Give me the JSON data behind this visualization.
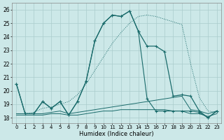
{
  "xlabel": "Humidex (Indice chaleur)",
  "bg_color": "#cce8e8",
  "grid_color": "#aacccc",
  "line_color": "#1a6b6b",
  "xlim": [
    -0.5,
    23.5
  ],
  "ylim": [
    17.6,
    26.5
  ],
  "yticks": [
    18,
    19,
    20,
    21,
    22,
    23,
    24,
    25,
    26
  ],
  "xticks": [
    0,
    1,
    2,
    3,
    4,
    5,
    6,
    7,
    8,
    9,
    10,
    11,
    12,
    13,
    14,
    15,
    16,
    17,
    18,
    19,
    20,
    21,
    22,
    23
  ],
  "dotted_x": [
    0,
    1,
    2,
    3,
    4,
    5,
    6,
    7,
    8,
    9,
    10,
    11,
    12,
    13,
    14,
    15,
    16,
    17,
    18,
    19,
    20,
    21,
    22,
    23
  ],
  "dotted_y": [
    18.3,
    18.3,
    18.4,
    18.7,
    18.8,
    19.0,
    19.2,
    19.7,
    20.5,
    21.5,
    22.5,
    23.5,
    24.3,
    25.0,
    25.5,
    25.6,
    25.5,
    25.3,
    25.1,
    24.9,
    22.0,
    19.5,
    18.5,
    18.4
  ],
  "jagged_x": [
    0,
    1,
    2,
    3,
    4,
    5,
    6,
    7,
    8,
    9,
    10,
    11,
    12,
    13,
    14,
    15,
    16,
    17,
    18,
    19,
    20,
    21,
    22,
    23
  ],
  "jagged_y": [
    20.5,
    18.3,
    18.3,
    19.2,
    18.7,
    19.2,
    18.2,
    19.2,
    20.7,
    23.7,
    25.0,
    25.6,
    25.5,
    25.9,
    24.4,
    19.4,
    18.5,
    18.5,
    18.5,
    18.5,
    18.5,
    18.4,
    18.0,
    18.5
  ],
  "main_x": [
    0,
    1,
    2,
    3,
    4,
    5,
    6,
    7,
    8,
    9,
    10,
    11,
    12,
    13,
    14,
    15,
    16,
    17,
    18,
    19,
    20,
    21,
    22,
    23
  ],
  "main_y": [
    20.5,
    18.3,
    18.3,
    19.2,
    18.7,
    19.2,
    18.2,
    19.2,
    20.7,
    23.7,
    25.0,
    25.6,
    25.5,
    25.9,
    24.4,
    23.3,
    23.3,
    22.9,
    19.6,
    19.7,
    19.6,
    18.5,
    18.0,
    18.5
  ],
  "flat1_x": [
    0,
    1,
    2,
    3,
    4,
    5,
    6,
    7,
    8,
    9,
    10,
    11,
    12,
    13,
    14,
    15,
    16,
    17,
    18,
    19,
    20,
    21,
    22,
    23
  ],
  "flat1_y": [
    18.3,
    18.3,
    18.3,
    18.3,
    18.4,
    18.5,
    18.3,
    18.4,
    18.5,
    18.6,
    18.7,
    18.8,
    18.9,
    19.0,
    19.1,
    19.2,
    19.3,
    19.4,
    19.5,
    19.6,
    18.6,
    18.5,
    18.3,
    18.5
  ],
  "flat2_x": [
    0,
    1,
    2,
    3,
    4,
    5,
    6,
    7,
    8,
    9,
    10,
    11,
    12,
    13,
    14,
    15,
    16,
    17,
    18,
    19,
    20,
    21,
    22,
    23
  ],
  "flat2_y": [
    18.2,
    18.2,
    18.2,
    18.2,
    18.3,
    18.3,
    18.2,
    18.2,
    18.3,
    18.4,
    18.5,
    18.5,
    18.6,
    18.6,
    18.6,
    18.6,
    18.6,
    18.6,
    18.5,
    18.5,
    18.3,
    18.3,
    18.1,
    18.3
  ]
}
